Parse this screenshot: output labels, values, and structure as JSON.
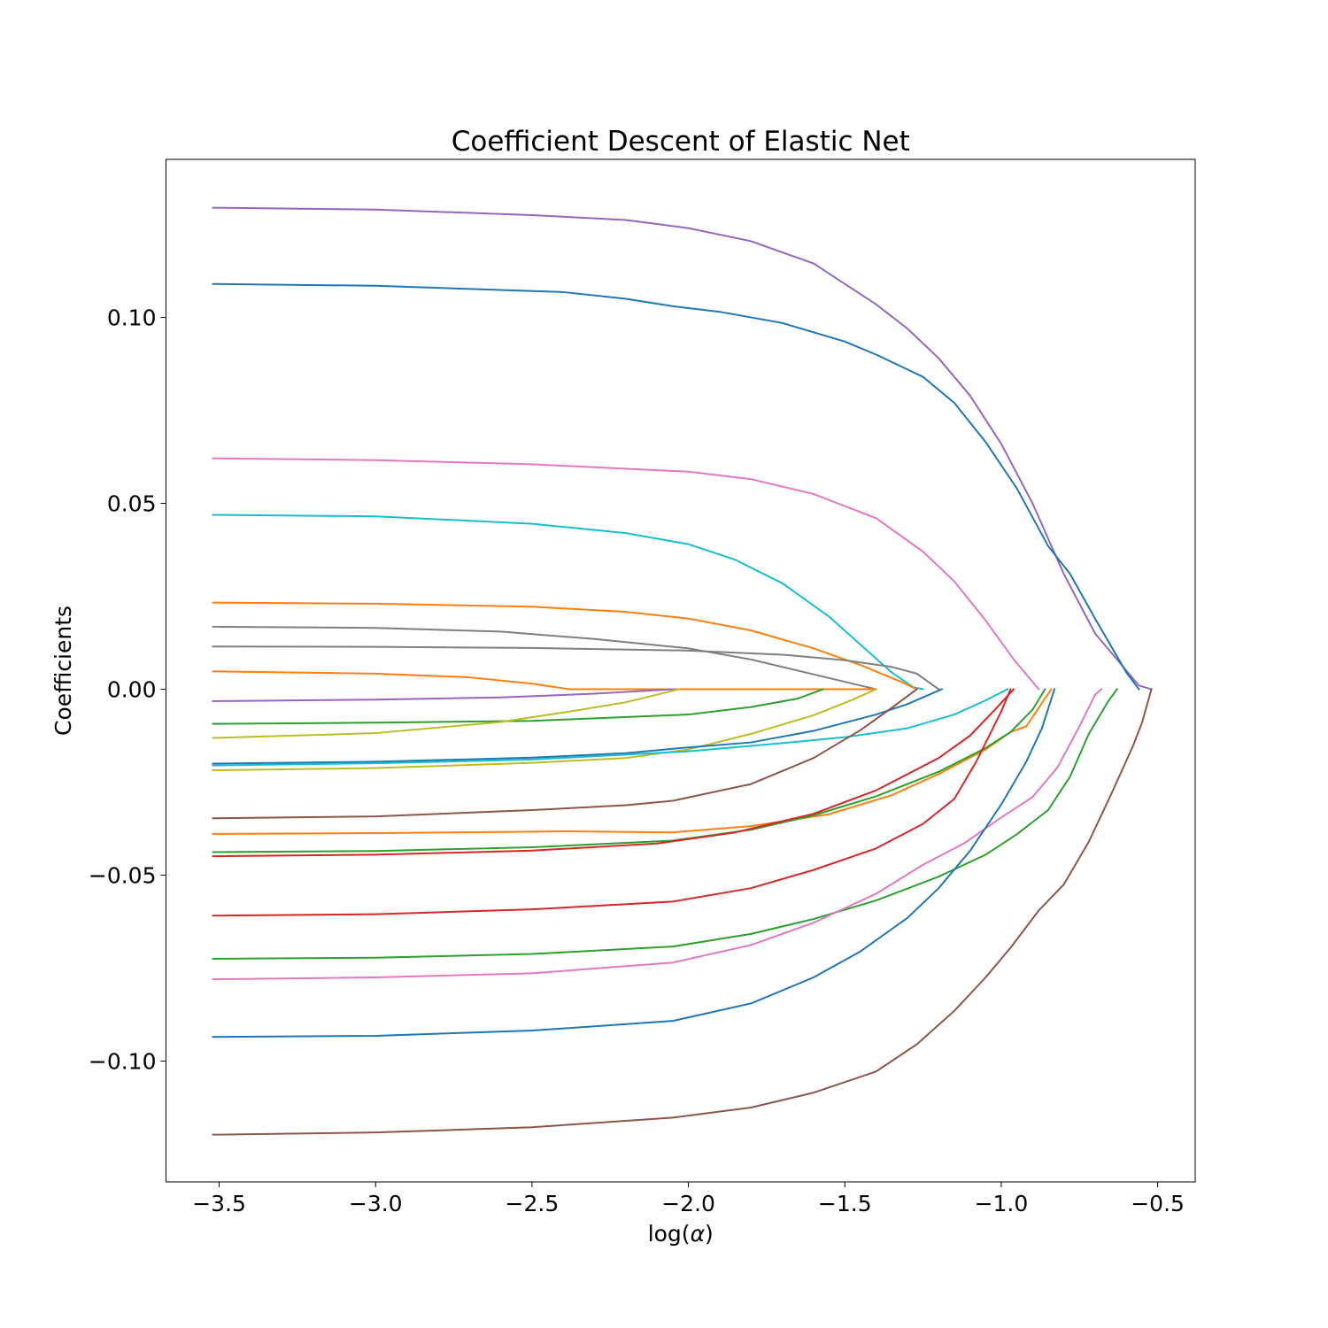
{
  "chart_data": {
    "type": "line",
    "title": "Coefficient Descent of Elastic Net",
    "xlabel_text": "log(",
    "xlabel_symbol": "α",
    "xlabel_close": ")",
    "ylabel": "Coefficients",
    "xlim": [
      -3.67,
      -0.38
    ],
    "ylim": [
      -0.1325,
      0.1425
    ],
    "x_ticks": [
      {
        "value": -3.5,
        "label": "−3.5"
      },
      {
        "value": -3.0,
        "label": "−3.0"
      },
      {
        "value": -2.5,
        "label": "−2.5"
      },
      {
        "value": -2.0,
        "label": "−2.0"
      },
      {
        "value": -1.5,
        "label": "−1.5"
      },
      {
        "value": -1.0,
        "label": "−1.0"
      },
      {
        "value": -0.5,
        "label": "−0.5"
      }
    ],
    "y_ticks": [
      {
        "value": 0.1,
        "label": "0.10"
      },
      {
        "value": 0.05,
        "label": "0.05"
      },
      {
        "value": 0.0,
        "label": "0.00"
      },
      {
        "value": -0.05,
        "label": "−0.05"
      },
      {
        "value": -0.1,
        "label": "−0.10"
      }
    ],
    "grid": false,
    "legend": "none",
    "series": [
      {
        "color": "#9467bd",
        "points": [
          [
            -3.52,
            0.1295
          ],
          [
            -3.0,
            0.129
          ],
          [
            -2.5,
            0.1275
          ],
          [
            -2.2,
            0.1262
          ],
          [
            -2.0,
            0.124
          ],
          [
            -1.8,
            0.1205
          ],
          [
            -1.6,
            0.1145
          ],
          [
            -1.5,
            0.109
          ],
          [
            -1.4,
            0.1035
          ],
          [
            -1.3,
            0.097
          ],
          [
            -1.2,
            0.089
          ],
          [
            -1.1,
            0.079
          ],
          [
            -1.0,
            0.066
          ],
          [
            -0.9,
            0.05
          ],
          [
            -0.8,
            0.031
          ],
          [
            -0.7,
            0.015
          ],
          [
            -0.6,
            0.005
          ],
          [
            -0.56,
            0.001
          ],
          [
            -0.52,
            0.0
          ]
        ]
      },
      {
        "color": "#1f77b4",
        "points": [
          [
            -3.52,
            0.109
          ],
          [
            -3.0,
            0.1085
          ],
          [
            -2.4,
            0.1068
          ],
          [
            -2.2,
            0.105
          ],
          [
            -2.05,
            0.103
          ],
          [
            -1.9,
            0.1015
          ],
          [
            -1.7,
            0.0985
          ],
          [
            -1.5,
            0.0935
          ],
          [
            -1.4,
            0.09
          ],
          [
            -1.25,
            0.084
          ],
          [
            -1.15,
            0.077
          ],
          [
            -1.05,
            0.0665
          ],
          [
            -0.95,
            0.054
          ],
          [
            -0.85,
            0.0385
          ],
          [
            -0.78,
            0.031
          ],
          [
            -0.7,
            0.019
          ],
          [
            -0.6,
            0.0045
          ],
          [
            -0.56,
            0.0
          ]
        ]
      },
      {
        "color": "#e377c2",
        "points": [
          [
            -3.52,
            0.0621
          ],
          [
            -3.0,
            0.0616
          ],
          [
            -2.5,
            0.0605
          ],
          [
            -2.0,
            0.0585
          ],
          [
            -1.8,
            0.0565
          ],
          [
            -1.6,
            0.0525
          ],
          [
            -1.4,
            0.046
          ],
          [
            -1.25,
            0.037
          ],
          [
            -1.15,
            0.029
          ],
          [
            -1.05,
            0.0185
          ],
          [
            -0.96,
            0.008
          ],
          [
            -0.88,
            0.0
          ]
        ]
      },
      {
        "color": "#17becf",
        "points": [
          [
            -3.52,
            0.0469
          ],
          [
            -3.0,
            0.0465
          ],
          [
            -2.5,
            0.0445
          ],
          [
            -2.2,
            0.042
          ],
          [
            -2.0,
            0.039
          ],
          [
            -1.85,
            0.0348
          ],
          [
            -1.7,
            0.0285
          ],
          [
            -1.55,
            0.0195
          ],
          [
            -1.45,
            0.012
          ],
          [
            -1.35,
            0.0045
          ],
          [
            -1.28,
            0.0005
          ],
          [
            -1.25,
            0.0
          ]
        ]
      },
      {
        "color": "#ff7f0e",
        "points": [
          [
            -3.52,
            0.0233
          ],
          [
            -3.0,
            0.023
          ],
          [
            -2.5,
            0.0222
          ],
          [
            -2.2,
            0.0208
          ],
          [
            -2.0,
            0.019
          ],
          [
            -1.8,
            0.0158
          ],
          [
            -1.6,
            0.011
          ],
          [
            -1.45,
            0.0065
          ],
          [
            -1.32,
            0.002
          ],
          [
            -1.27,
            0.0
          ]
        ]
      },
      {
        "color": "#7f7f7f",
        "points": [
          [
            -3.52,
            0.0168
          ],
          [
            -3.0,
            0.0165
          ],
          [
            -2.6,
            0.0155
          ],
          [
            -2.3,
            0.0135
          ],
          [
            -2.0,
            0.011
          ],
          [
            -1.8,
            0.008
          ],
          [
            -1.6,
            0.004
          ],
          [
            -1.45,
            0.001
          ],
          [
            -1.4,
            0.0
          ]
        ]
      },
      {
        "color": "#7f7f7f",
        "points": [
          [
            -3.52,
            0.0115
          ],
          [
            -3.0,
            0.0114
          ],
          [
            -2.5,
            0.0111
          ],
          [
            -2.0,
            0.0104
          ],
          [
            -1.7,
            0.0093
          ],
          [
            -1.5,
            0.0078
          ],
          [
            -1.35,
            0.006
          ],
          [
            -1.27,
            0.0042
          ],
          [
            -1.2,
            0.0
          ]
        ]
      },
      {
        "color": "#ff7f0e",
        "points": [
          [
            -3.52,
            0.0048
          ],
          [
            -3.0,
            0.0042
          ],
          [
            -2.7,
            0.0032
          ],
          [
            -2.5,
            0.0015
          ],
          [
            -2.38,
            0.0
          ],
          [
            -1.4,
            0.0
          ]
        ]
      },
      {
        "color": "#9467bd",
        "points": [
          [
            -3.52,
            -0.0032
          ],
          [
            -3.0,
            -0.0028
          ],
          [
            -2.6,
            -0.0022
          ],
          [
            -2.3,
            -0.0012
          ],
          [
            -2.05,
            0.0
          ]
        ]
      },
      {
        "color": "#2ca02c",
        "points": [
          [
            -3.52,
            -0.0093
          ],
          [
            -3.0,
            -0.009
          ],
          [
            -2.5,
            -0.0085
          ],
          [
            -2.0,
            -0.0068
          ],
          [
            -1.8,
            -0.0048
          ],
          [
            -1.65,
            -0.0025
          ],
          [
            -1.57,
            0.0
          ]
        ]
      },
      {
        "color": "#bcbd22",
        "points": [
          [
            -3.52,
            -0.0131
          ],
          [
            -3.0,
            -0.0118
          ],
          [
            -2.6,
            -0.0088
          ],
          [
            -2.38,
            -0.006
          ],
          [
            -2.2,
            -0.0035
          ],
          [
            -2.03,
            0.0
          ]
        ]
      },
      {
        "color": "#bcbd22",
        "points": [
          [
            -3.52,
            -0.0218
          ],
          [
            -3.0,
            -0.0212
          ],
          [
            -2.5,
            -0.0198
          ],
          [
            -2.2,
            -0.0185
          ],
          [
            -2.0,
            -0.0162
          ],
          [
            -1.8,
            -0.012
          ],
          [
            -1.6,
            -0.007
          ],
          [
            -1.48,
            -0.003
          ],
          [
            -1.4,
            0.0
          ]
        ]
      },
      {
        "color": "#1f77b4",
        "points": [
          [
            -3.52,
            -0.02
          ],
          [
            -3.0,
            -0.0195
          ],
          [
            -2.5,
            -0.0184
          ],
          [
            -2.2,
            -0.0172
          ],
          [
            -2.05,
            -0.016
          ],
          [
            -1.8,
            -0.0143
          ],
          [
            -1.6,
            -0.0112
          ],
          [
            -1.4,
            -0.0068
          ],
          [
            -1.3,
            -0.004
          ],
          [
            -1.19,
            0.0
          ]
        ]
      },
      {
        "color": "#17becf",
        "points": [
          [
            -3.52,
            -0.0205
          ],
          [
            -3.0,
            -0.0199
          ],
          [
            -2.5,
            -0.0189
          ],
          [
            -2.0,
            -0.0167
          ],
          [
            -1.7,
            -0.0145
          ],
          [
            -1.5,
            -0.0129
          ],
          [
            -1.3,
            -0.0105
          ],
          [
            -1.15,
            -0.0068
          ],
          [
            -1.05,
            -0.003
          ],
          [
            -0.98,
            0.0
          ]
        ]
      },
      {
        "color": "#8c564b",
        "points": [
          [
            -3.52,
            -0.0347
          ],
          [
            -3.0,
            -0.0342
          ],
          [
            -2.5,
            -0.0325
          ],
          [
            -2.2,
            -0.0312
          ],
          [
            -2.05,
            -0.03
          ],
          [
            -1.8,
            -0.0255
          ],
          [
            -1.6,
            -0.0185
          ],
          [
            -1.45,
            -0.011
          ],
          [
            -1.35,
            -0.005
          ],
          [
            -1.27,
            0.0
          ]
        ]
      },
      {
        "color": "#ff7f0e",
        "points": [
          [
            -3.52,
            -0.0389
          ],
          [
            -3.0,
            -0.0387
          ],
          [
            -2.6,
            -0.0384
          ],
          [
            -2.38,
            -0.0382
          ],
          [
            -2.05,
            -0.0385
          ],
          [
            -1.8,
            -0.0368
          ],
          [
            -1.55,
            -0.0336
          ],
          [
            -1.35,
            -0.0285
          ],
          [
            -1.2,
            -0.0228
          ],
          [
            -1.05,
            -0.0162
          ],
          [
            -0.97,
            -0.0115
          ],
          [
            -0.92,
            -0.01
          ],
          [
            -0.84,
            0.0
          ]
        ]
      },
      {
        "color": "#2ca02c",
        "points": [
          [
            -3.52,
            -0.0438
          ],
          [
            -3.0,
            -0.0435
          ],
          [
            -2.5,
            -0.0425
          ],
          [
            -2.05,
            -0.0407
          ],
          [
            -1.8,
            -0.0378
          ],
          [
            -1.6,
            -0.0339
          ],
          [
            -1.4,
            -0.0288
          ],
          [
            -1.2,
            -0.0222
          ],
          [
            -1.05,
            -0.0158
          ],
          [
            -0.97,
            -0.0115
          ],
          [
            -0.9,
            -0.0055
          ],
          [
            -0.86,
            0.0
          ]
        ]
      },
      {
        "color": "#d62728",
        "points": [
          [
            -3.52,
            -0.0449
          ],
          [
            -3.0,
            -0.0445
          ],
          [
            -2.5,
            -0.0434
          ],
          [
            -2.1,
            -0.0415
          ],
          [
            -1.85,
            -0.0385
          ],
          [
            -1.6,
            -0.0335
          ],
          [
            -1.4,
            -0.0272
          ],
          [
            -1.2,
            -0.0185
          ],
          [
            -1.1,
            -0.0125
          ],
          [
            -1.02,
            -0.0055
          ],
          [
            -0.96,
            0.0
          ]
        ]
      },
      {
        "color": "#d62728",
        "points": [
          [
            -3.52,
            -0.0609
          ],
          [
            -3.0,
            -0.0605
          ],
          [
            -2.5,
            -0.0592
          ],
          [
            -2.05,
            -0.0571
          ],
          [
            -1.8,
            -0.0535
          ],
          [
            -1.6,
            -0.0486
          ],
          [
            -1.4,
            -0.0428
          ],
          [
            -1.25,
            -0.0362
          ],
          [
            -1.15,
            -0.0295
          ],
          [
            -1.08,
            -0.0195
          ],
          [
            -1.0,
            -0.006
          ],
          [
            -0.97,
            0.0
          ]
        ]
      },
      {
        "color": "#2ca02c",
        "points": [
          [
            -3.52,
            -0.0725
          ],
          [
            -3.0,
            -0.0722
          ],
          [
            -2.5,
            -0.0712
          ],
          [
            -2.05,
            -0.0692
          ],
          [
            -1.8,
            -0.0658
          ],
          [
            -1.6,
            -0.0618
          ],
          [
            -1.4,
            -0.0568
          ],
          [
            -1.2,
            -0.0504
          ],
          [
            -1.05,
            -0.0445
          ],
          [
            -0.95,
            -0.039
          ],
          [
            -0.85,
            -0.0325
          ],
          [
            -0.78,
            -0.0235
          ],
          [
            -0.72,
            -0.012
          ],
          [
            -0.66,
            -0.0035
          ],
          [
            -0.63,
            0.0
          ]
        ]
      },
      {
        "color": "#e377c2",
        "points": [
          [
            -3.52,
            -0.078
          ],
          [
            -3.0,
            -0.0775
          ],
          [
            -2.5,
            -0.0764
          ],
          [
            -2.05,
            -0.0735
          ],
          [
            -1.8,
            -0.0688
          ],
          [
            -1.6,
            -0.0628
          ],
          [
            -1.4,
            -0.055
          ],
          [
            -1.25,
            -0.0472
          ],
          [
            -1.12,
            -0.0415
          ],
          [
            -1.0,
            -0.0345
          ],
          [
            -0.9,
            -0.029
          ],
          [
            -0.82,
            -0.021
          ],
          [
            -0.75,
            -0.01
          ],
          [
            -0.7,
            -0.0015
          ],
          [
            -0.68,
            0.0
          ]
        ]
      },
      {
        "color": "#1f77b4",
        "points": [
          [
            -3.52,
            -0.0935
          ],
          [
            -3.0,
            -0.0932
          ],
          [
            -2.5,
            -0.0918
          ],
          [
            -2.05,
            -0.0892
          ],
          [
            -1.8,
            -0.0845
          ],
          [
            -1.6,
            -0.0775
          ],
          [
            -1.45,
            -0.0705
          ],
          [
            -1.3,
            -0.0615
          ],
          [
            -1.2,
            -0.0535
          ],
          [
            -1.1,
            -0.0435
          ],
          [
            -1.0,
            -0.031
          ],
          [
            -0.92,
            -0.0195
          ],
          [
            -0.87,
            -0.0105
          ],
          [
            -0.83,
            0.0
          ]
        ]
      },
      {
        "color": "#8c564b",
        "points": [
          [
            -3.52,
            -0.1198
          ],
          [
            -3.0,
            -0.1192
          ],
          [
            -2.5,
            -0.1178
          ],
          [
            -2.05,
            -0.1152
          ],
          [
            -1.8,
            -0.1125
          ],
          [
            -1.6,
            -0.1085
          ],
          [
            -1.4,
            -0.1028
          ],
          [
            -1.27,
            -0.0955
          ],
          [
            -1.15,
            -0.0865
          ],
          [
            -1.05,
            -0.0775
          ],
          [
            -0.97,
            -0.0695
          ],
          [
            -0.88,
            -0.0595
          ],
          [
            -0.8,
            -0.0525
          ],
          [
            -0.72,
            -0.041
          ],
          [
            -0.65,
            -0.0285
          ],
          [
            -0.58,
            -0.0155
          ],
          [
            -0.55,
            -0.009
          ],
          [
            -0.52,
            0.0
          ]
        ]
      }
    ]
  }
}
